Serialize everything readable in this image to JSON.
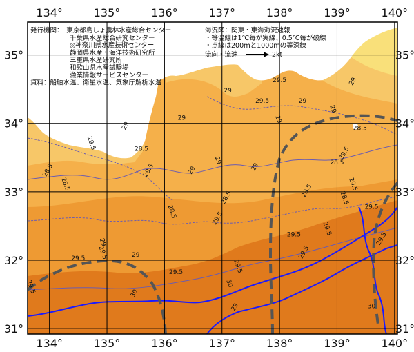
{
  "map": {
    "lon_labels": [
      "134°",
      "135°",
      "136°",
      "137°",
      "138°",
      "139°",
      "140°"
    ],
    "lat_labels": [
      "35°",
      "34°",
      "33°",
      "32°",
      "31°"
    ],
    "colors": {
      "sea_deep": "#e07a1c",
      "sea_mid": "#ee9a33",
      "sea_light": "#f5b04a",
      "sea_warm_band": "#f2a53c",
      "coastal": "#f7c768",
      "near_shore": "#f9e07a",
      "land": "#ffffff",
      "isotherm": "#6a5bb0",
      "depth_200m": "#1a1aff",
      "current_axis": "#555555",
      "grid": "#000000"
    },
    "isotherm_labels": [
      {
        "text": "29",
        "lon": 136.5,
        "lat": 33.3
      },
      {
        "text": "29",
        "lon": 136.9,
        "lat": 33.45
      },
      {
        "text": "29",
        "lon": 136.3,
        "lat": 34.05
      },
      {
        "text": "29",
        "lon": 137.6,
        "lat": 33.35
      },
      {
        "text": "29",
        "lon": 137.95,
        "lat": 34.05
      },
      {
        "text": "29",
        "lon": 138.4,
        "lat": 34.3
      },
      {
        "text": "29",
        "lon": 139.3,
        "lat": 34.6
      },
      {
        "text": "29",
        "lon": 138.9,
        "lat": 34.2
      },
      {
        "text": "29",
        "lon": 137.1,
        "lat": 34.45
      },
      {
        "text": "29",
        "lon": 135.35,
        "lat": 33.95
      },
      {
        "text": "29",
        "lon": 134.9,
        "lat": 32.25
      },
      {
        "text": "29",
        "lon": 135.5,
        "lat": 32.05
      },
      {
        "text": "29.5",
        "lon": 135.75,
        "lat": 33.3
      },
      {
        "text": "29.5",
        "lon": 134.7,
        "lat": 33.7
      },
      {
        "text": "29.5",
        "lon": 138.0,
        "lat": 34.6
      },
      {
        "text": "29.5",
        "lon": 139.15,
        "lat": 33.55
      },
      {
        "text": "29.5",
        "lon": 139.25,
        "lat": 33.1
      },
      {
        "text": "29.5",
        "lon": 137.7,
        "lat": 34.3
      },
      {
        "text": "29.5",
        "lon": 136.95,
        "lat": 32.6
      },
      {
        "text": "29.5",
        "lon": 134.9,
        "lat": 32.1
      },
      {
        "text": "29.5",
        "lon": 134.5,
        "lat": 32.0
      },
      {
        "text": "29.5",
        "lon": 138.45,
        "lat": 32.1
      },
      {
        "text": "29.5",
        "lon": 138.8,
        "lat": 32.45
      },
      {
        "text": "29.5",
        "lon": 138.25,
        "lat": 32.35
      },
      {
        "text": "29.5",
        "lon": 139.8,
        "lat": 32.3
      },
      {
        "text": "29.5",
        "lon": 137.25,
        "lat": 31.9
      },
      {
        "text": "29.5",
        "lon": 136.2,
        "lat": 31.8
      },
      {
        "text": "28.5",
        "lon": 134.0,
        "lat": 33.3
      },
      {
        "text": "28.5",
        "lon": 134.25,
        "lat": 33.1
      },
      {
        "text": "28.5",
        "lon": 135.6,
        "lat": 33.6
      },
      {
        "text": "28.5",
        "lon": 137.1,
        "lat": 32.9
      },
      {
        "text": "28.5",
        "lon": 136.1,
        "lat": 32.7
      },
      {
        "text": "28.5",
        "lon": 139.4,
        "lat": 33.9
      },
      {
        "text": "28.5",
        "lon": 138.5,
        "lat": 33.0
      },
      {
        "text": "28.5",
        "lon": 139.1,
        "lat": 32.9
      },
      {
        "text": "29.5",
        "lon": 139.6,
        "lat": 32.75
      },
      {
        "text": "30",
        "lon": 135.5,
        "lat": 31.5
      },
      {
        "text": "30",
        "lon": 137.1,
        "lat": 31.65
      },
      {
        "text": "30",
        "lon": 139.6,
        "lat": 31.3
      },
      {
        "text": "29",
        "lon": 137.25,
        "lat": 31.3
      },
      {
        "text": "29.5",
        "lon": 133.65,
        "lat": 31.6
      },
      {
        "text": "28.5",
        "lon": 139.0,
        "lat": 33.4
      }
    ]
  },
  "info": {
    "left_lines": [
      "発行機関：　東京都島しょ農林水産総合センター",
      "　　　　　　千葉県水産総合研究センター",
      "　　　　　　◎神奈川県水産技術センター",
      "　　　　　　静岡県水産・海洋技術研究所",
      "　　　　　　三重県水産研究所",
      "　　　　　　和歌山県水産試験場",
      "　　　　　　漁業情報サービスセンター",
      "資料：船舶水温、衛星水温、気象庁解析水温"
    ],
    "right_lines": [
      "海況図：関東・東海海況速報",
      "・等温線は1℃毎が実線、0.5℃毎が破線",
      "・点線は200ｍと1000ｍの等深線"
    ],
    "legend_label": "流向・流速",
    "legend_speed": "2kt"
  }
}
